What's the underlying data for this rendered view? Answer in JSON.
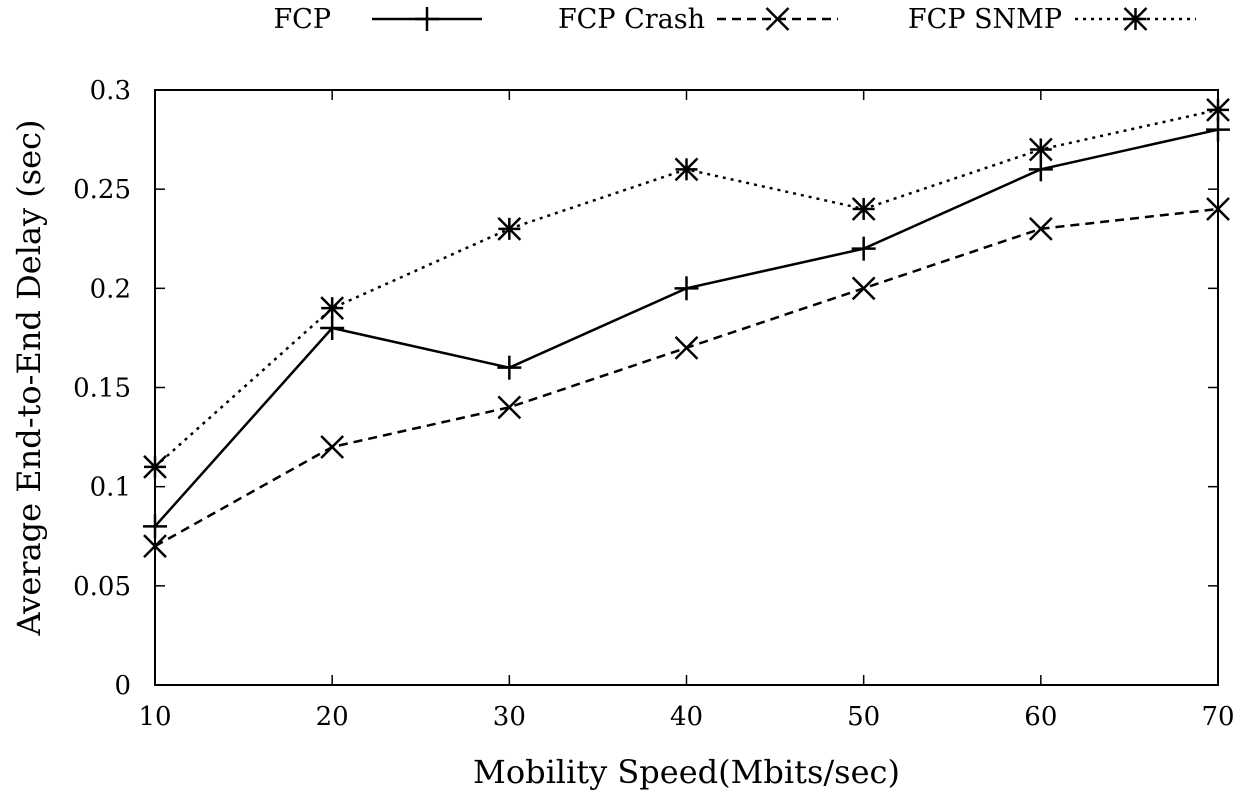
{
  "chart_data": {
    "type": "line",
    "xlabel": "Mobility Speed(Mbits/sec)",
    "ylabel": "Average End-to-End Delay (sec)",
    "x": [
      10,
      20,
      30,
      40,
      50,
      60,
      70
    ],
    "xlim": [
      10,
      70
    ],
    "ylim": [
      0,
      0.3
    ],
    "xticks": [
      "10",
      "20",
      "30",
      "40",
      "50",
      "60",
      "70"
    ],
    "yticks": [
      "0",
      "0.05",
      "0.1",
      "0.15",
      "0.2",
      "0.25",
      "0.3"
    ],
    "grid": false,
    "legend_position": "top",
    "series": [
      {
        "name": "FCP",
        "marker": "plus",
        "dash": "solid",
        "color": "#000000",
        "values": [
          0.08,
          0.18,
          0.16,
          0.2,
          0.22,
          0.26,
          0.28
        ]
      },
      {
        "name": "FCP Crash",
        "marker": "x",
        "dash": "dashed",
        "color": "#000000",
        "values": [
          0.07,
          0.12,
          0.14,
          0.17,
          0.2,
          0.23,
          0.24
        ]
      },
      {
        "name": "FCP SNMP",
        "marker": "asterisk",
        "dash": "dotted",
        "color": "#000000",
        "values": [
          0.11,
          0.19,
          0.23,
          0.26,
          0.24,
          0.27,
          0.29
        ]
      }
    ]
  }
}
